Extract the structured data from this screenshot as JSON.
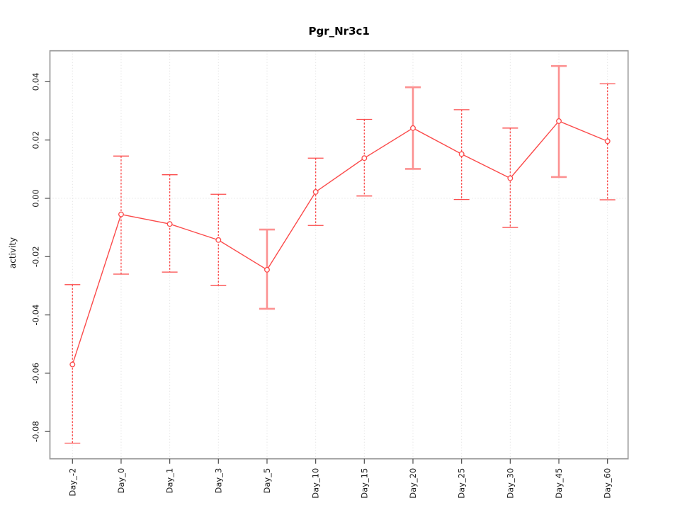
{
  "chart_data": {
    "type": "line",
    "title": "Pgr_Nr3c1",
    "xlabel": "",
    "ylabel": "activity",
    "categories": [
      "Day_-2",
      "Day_0",
      "Day_1",
      "Day_3",
      "Day_5",
      "Day_10",
      "Day_15",
      "Day_20",
      "Day_25",
      "Day_30",
      "Day_45",
      "Day_60"
    ],
    "series": [
      {
        "name": "activity",
        "values": [
          -0.057,
          -0.0055,
          -0.0088,
          -0.0143,
          -0.0245,
          0.0022,
          0.0138,
          0.0241,
          0.0152,
          0.0069,
          0.0265,
          0.0196
        ],
        "ci_lower": [
          -0.084,
          -0.026,
          -0.0253,
          -0.0299,
          -0.0379,
          -0.0093,
          0.0008,
          0.0101,
          -0.0004,
          -0.01,
          0.0073,
          -0.0005
        ],
        "ci_upper": [
          -0.0296,
          0.0145,
          0.0081,
          0.0014,
          -0.0107,
          0.0138,
          0.0271,
          0.0381,
          0.0304,
          0.0241,
          0.0454,
          0.0393
        ],
        "error_bar_styles": [
          "dashed",
          "dashed",
          "dashed",
          "dashed",
          "solid",
          "dashed",
          "dashed",
          "solid",
          "dashed",
          "dashed",
          "solid",
          "dashed"
        ]
      }
    ],
    "yticks": [
      "0.04",
      "0.02",
      "0.00",
      "-0.02",
      "-0.04",
      "-0.06",
      "-0.08"
    ],
    "ytick_values": [
      0.04,
      0.02,
      0,
      -0.02,
      -0.04,
      -0.06,
      -0.08
    ],
    "ylim": [
      -0.0895,
      0.0506
    ],
    "grid": {
      "vertical_at_categories": true,
      "horizontal_at_zero": true,
      "style": "dotted"
    },
    "legend": null,
    "colors": {
      "line": "#fb4a4a",
      "point_fill": "#ffffff",
      "error_bar_solid": "#fc9191",
      "grid": "#dcdcdc",
      "box_border": "#9a9a9a",
      "tick": "#4d4d4d",
      "text": "#1c1c1c",
      "title": "#000000"
    }
  }
}
